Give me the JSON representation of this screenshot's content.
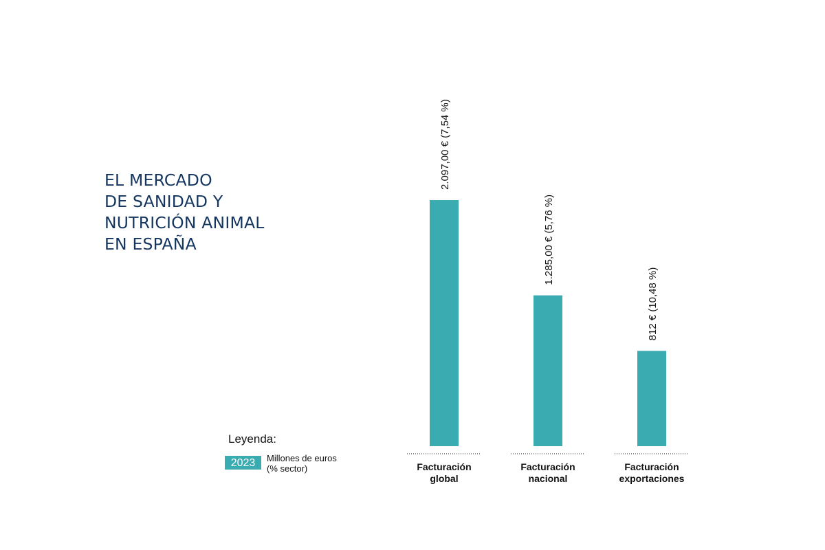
{
  "title_lines": [
    "EL MERCADO",
    "DE SANIDAD Y",
    "NUTRICIÓN ANIMAL",
    "EN ESPAÑA"
  ],
  "legend": {
    "title": "Leyenda:",
    "year": "2023",
    "line1": "Millones de euros",
    "line2": "(% sector)"
  },
  "colors": {
    "bar": "#3aabb1",
    "title": "#14355f"
  },
  "chart_data": {
    "type": "bar",
    "title": "EL MERCADO DE SANIDAD Y NUTRICIÓN ANIMAL EN ESPAÑA",
    "categories": [
      [
        "Facturación",
        "global"
      ],
      [
        "Facturación",
        "nacional"
      ],
      [
        "Facturación",
        "exportaciones"
      ]
    ],
    "values": [
      2097,
      1285,
      812
    ],
    "value_labels": [
      "2.097,00 € (7,54 %)",
      "1.285,00 € (5,76 %)",
      "812 € (10,48 %)"
    ],
    "unit": "Millones de euros",
    "series": [
      {
        "name": "2023",
        "values": [
          2097,
          1285,
          812
        ]
      }
    ],
    "ylim": [
      0,
      2097
    ],
    "grid": false,
    "legend_position": "bottom-left"
  }
}
